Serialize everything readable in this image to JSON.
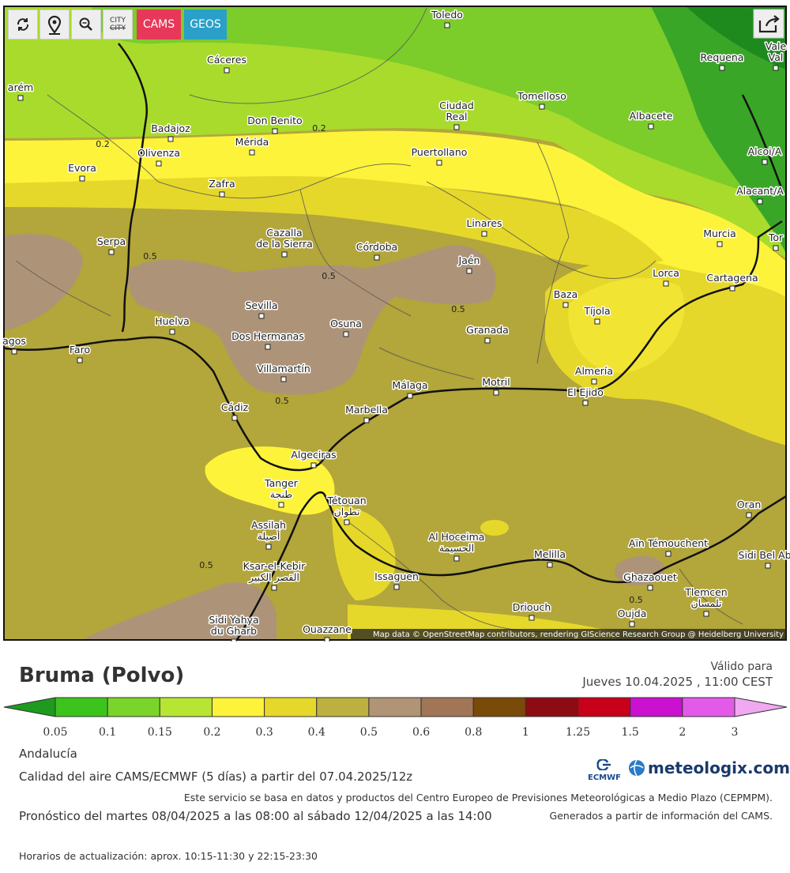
{
  "toolbar": {
    "city_labels": [
      "CITY",
      "CITY"
    ],
    "buttons": [
      "CAMS",
      "GEOS"
    ]
  },
  "map": {
    "cities": [
      {
        "lines": [
          "Toledo"
        ]
      },
      {
        "lines": [
          "Cáceres"
        ]
      },
      {
        "lines": [
          "Requena"
        ]
      },
      {
        "lines": [
          "Vale",
          "Val"
        ]
      },
      {
        "lines": [
          "arém"
        ]
      },
      {
        "lines": [
          "Ciudad",
          "Real"
        ]
      },
      {
        "lines": [
          "Tomelloso"
        ]
      },
      {
        "lines": [
          "Albacete"
        ]
      },
      {
        "lines": [
          "Badajoz"
        ]
      },
      {
        "lines": [
          "Don Benito"
        ]
      },
      {
        "lines": [
          "Mérida"
        ]
      },
      {
        "lines": [
          "Olivenza"
        ]
      },
      {
        "lines": [
          "Puertollano"
        ]
      },
      {
        "lines": [
          "Alcoi/A"
        ]
      },
      {
        "lines": [
          "Evora"
        ]
      },
      {
        "lines": [
          "Zafra"
        ]
      },
      {
        "lines": [
          "Alacant/A"
        ]
      },
      {
        "lines": [
          "Linares"
        ]
      },
      {
        "lines": [
          "Cazalla",
          "de la Sierra"
        ]
      },
      {
        "lines": [
          "Córdoba"
        ]
      },
      {
        "lines": [
          "Murcia"
        ]
      },
      {
        "lines": [
          "Tor"
        ]
      },
      {
        "lines": [
          "Serpa"
        ]
      },
      {
        "lines": [
          "Jaén"
        ]
      },
      {
        "lines": [
          "Lorca"
        ]
      },
      {
        "lines": [
          "Cartagena"
        ]
      },
      {
        "lines": [
          "Baza"
        ]
      },
      {
        "lines": [
          "Tíjola"
        ]
      },
      {
        "lines": [
          "Sevilla"
        ]
      },
      {
        "lines": [
          "Huelva"
        ]
      },
      {
        "lines": [
          "Osuna"
        ]
      },
      {
        "lines": [
          "Dos Hermanas"
        ]
      },
      {
        "lines": [
          "Granada"
        ]
      },
      {
        "lines": [
          "agos"
        ]
      },
      {
        "lines": [
          "Faro"
        ]
      },
      {
        "lines": [
          "Villamartín"
        ]
      },
      {
        "lines": [
          "Almería"
        ]
      },
      {
        "lines": [
          "Málaga"
        ]
      },
      {
        "lines": [
          "Motril"
        ]
      },
      {
        "lines": [
          "El Ejido"
        ]
      },
      {
        "lines": [
          "Cádiz"
        ]
      },
      {
        "lines": [
          "Marbella"
        ]
      },
      {
        "lines": [
          "Algeciras"
        ]
      },
      {
        "lines": [
          "Tanger",
          "طنجة"
        ]
      },
      {
        "lines": [
          "Tétouan",
          "تطوان"
        ]
      },
      {
        "lines": [
          "Oran"
        ]
      },
      {
        "lines": [
          "Assilah",
          "أصيلة"
        ]
      },
      {
        "lines": [
          "Al Hoceima",
          "الحسيمة"
        ]
      },
      {
        "lines": [
          "Aïn Témouchent"
        ]
      },
      {
        "lines": [
          "Melilla"
        ]
      },
      {
        "lines": [
          "Sidi Bel Abb"
        ]
      },
      {
        "lines": [
          "Ksar-el-Kebir",
          "القصر الكبير"
        ]
      },
      {
        "lines": [
          "Issaguen"
        ]
      },
      {
        "lines": [
          "Ghazaouet"
        ]
      },
      {
        "lines": [
          "Tlemcen",
          "تلمسان"
        ]
      },
      {
        "lines": [
          "Driouch"
        ]
      },
      {
        "lines": [
          "Oujda"
        ]
      },
      {
        "lines": [
          "Sidi Yahya",
          "du Gharb"
        ]
      },
      {
        "lines": [
          "Ouazzane"
        ]
      }
    ],
    "contour_labels": [
      "0.2",
      "0.2",
      "0.5",
      "0.5",
      "0.5",
      "0.5",
      "0.5",
      "0.5"
    ],
    "attribution": "Map data © OpenStreetMap contributors, rendering GIScience Research Group @ Heidelberg University"
  },
  "header": {
    "title": "Bruma (Polvo)",
    "valid_label": "Válido para",
    "valid_date": "Jueves 10.04.2025 , 11:00 CEST"
  },
  "legend": {
    "labels": [
      "0.05",
      "0.1",
      "0.15",
      "0.2",
      "0.3",
      "0.4",
      "0.5",
      "0.6",
      "0.8",
      "1",
      "1.25",
      "1.5",
      "2",
      "3"
    ],
    "colors": [
      "#1e9a1e",
      "#3cc41c",
      "#7ad42a",
      "#b6e632",
      "#fdf33a",
      "#e6d82a",
      "#bcb040",
      "#b09476",
      "#a07656",
      "#7a4a08",
      "#8c0c14",
      "#c8001a",
      "#cc10d0",
      "#e45ae8",
      "#f0a8f0"
    ]
  },
  "footer": {
    "region": "Andalucía",
    "model": "Calidad del aire CAMS/ECMWF (5 días) a partir del 07.04.2025/12z",
    "source": "Este servicio se basa en datos y productos del Centro Europeo de Previsiones Meteorológicas a Medio Plazo (CEPMPM).",
    "forecast": "Pronóstico del martes 08/04/2025 a las 08:00 al sábado 12/04/2025 a las 14:00",
    "generated": "Generados a partir de información del CAMS.",
    "update": "Horarios de actualización: aprox. 10:15-11:30 y 22:15-23:30",
    "logo_ecmwf": "ECMWF",
    "logo_meteologix": "meteologix.com"
  }
}
